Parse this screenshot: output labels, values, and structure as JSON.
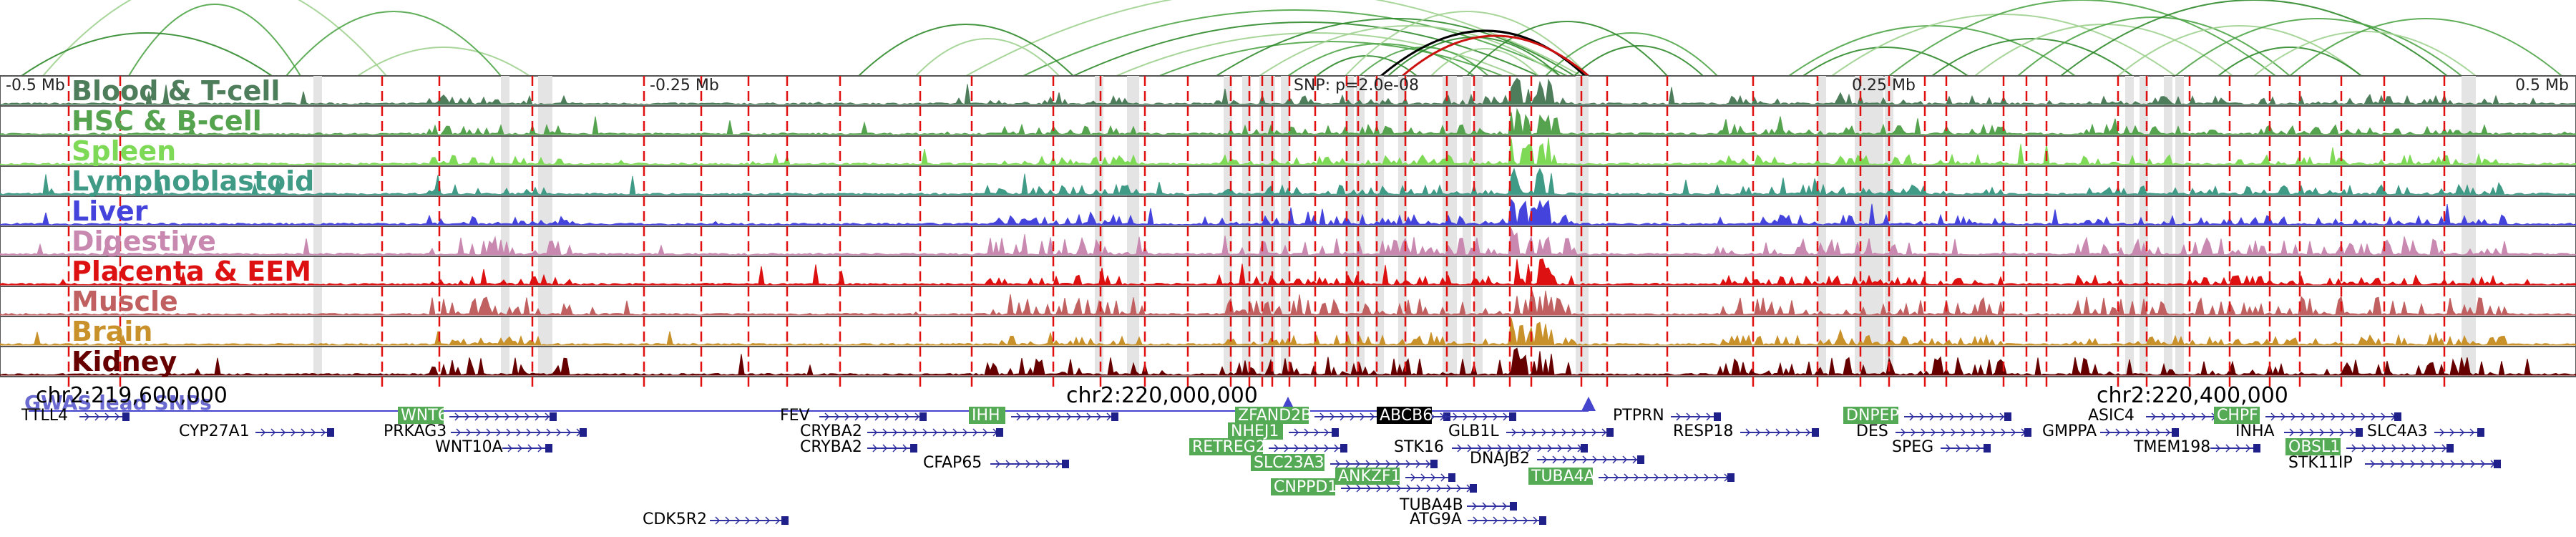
{
  "snp_label": "SNP: p=2.0e-08",
  "axis_labels": [
    {
      "text": "-0.5 Mb"
    },
    {
      "text": "-0.25 Mb"
    },
    {
      "text": "0.25 Mb"
    },
    {
      "text": "0.5 Mb"
    }
  ],
  "tracks": [
    {
      "name": "Blood & T-cell",
      "color": "#4e7d5b"
    },
    {
      "name": "HSC & B-cell",
      "color": "#55a34e"
    },
    {
      "name": "Spleen",
      "color": "#7ed957"
    },
    {
      "name": "Lymphoblastoid",
      "color": "#3f9a86"
    },
    {
      "name": "Liver",
      "color": "#4444dd"
    },
    {
      "name": "Digestive",
      "color": "#c888b0"
    },
    {
      "name": "Placenta & EEM",
      "color": "#dd1111"
    },
    {
      "name": "Muscle",
      "color": "#c06060"
    },
    {
      "name": "Brain",
      "color": "#c8912a"
    },
    {
      "name": "Kidney",
      "color": "#660000"
    }
  ],
  "gwas_label": "GWAS lead SNPs",
  "coordinates": [
    {
      "text": "chr2:219,600,000"
    },
    {
      "text": "chr2:220,000,000"
    },
    {
      "text": "chr2:220,400,000"
    }
  ],
  "genes": [
    {
      "name": "TTLL4",
      "highlight": false
    },
    {
      "name": "CYP27A1",
      "highlight": false
    },
    {
      "name": "WNT6",
      "highlight": true
    },
    {
      "name": "PRKAG3",
      "highlight": false
    },
    {
      "name": "WNT10A",
      "highlight": false
    },
    {
      "name": "CDK5R2",
      "highlight": false
    },
    {
      "name": "FEV",
      "highlight": false
    },
    {
      "name": "CRYBA2",
      "highlight": false
    },
    {
      "name": "CRYBA2",
      "highlight": false
    },
    {
      "name": "CFAP65",
      "highlight": false
    },
    {
      "name": "IHH",
      "highlight": true
    },
    {
      "name": "ZFAND2B",
      "highlight": true
    },
    {
      "name": "NHEJ1",
      "highlight": true
    },
    {
      "name": "RETREG2",
      "highlight": true
    },
    {
      "name": "SLC23A3",
      "highlight": true
    },
    {
      "name": "CNPPD1",
      "highlight": true
    },
    {
      "name": "ANKZF1",
      "highlight": true
    },
    {
      "name": "ABCB6",
      "highlight": true,
      "dark": true
    },
    {
      "name": "GLB1L",
      "highlight": false
    },
    {
      "name": "STK16",
      "highlight": false
    },
    {
      "name": "TUBA4B",
      "highlight": false
    },
    {
      "name": "ATG9A",
      "highlight": false
    },
    {
      "name": "DNAJB2",
      "highlight": false
    },
    {
      "name": "TUBA4A",
      "highlight": true
    },
    {
      "name": "PTPRN",
      "highlight": false
    },
    {
      "name": "RESP18",
      "highlight": false
    },
    {
      "name": "DNPEP",
      "highlight": true
    },
    {
      "name": "DES",
      "highlight": false
    },
    {
      "name": "SPEG",
      "highlight": false
    },
    {
      "name": "GMPPA",
      "highlight": false
    },
    {
      "name": "ASIC4",
      "highlight": false
    },
    {
      "name": "CHPF",
      "highlight": true
    },
    {
      "name": "TMEM198",
      "highlight": false
    },
    {
      "name": "INHA",
      "highlight": false
    },
    {
      "name": "OBSL1",
      "highlight": true
    },
    {
      "name": "STK11IP",
      "highlight": false
    },
    {
      "name": "SLC4A3",
      "highlight": false
    }
  ]
}
